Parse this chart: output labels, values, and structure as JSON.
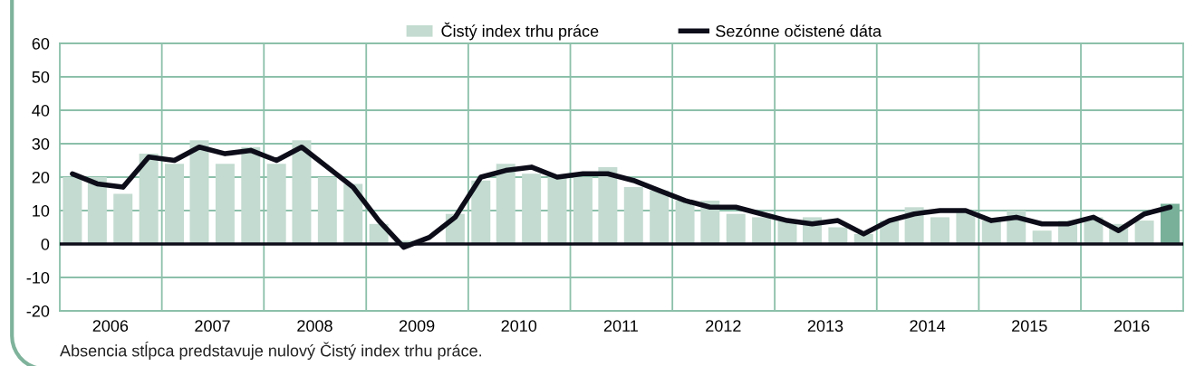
{
  "chart_data": {
    "type": "bar",
    "x": [
      "2006-02-15",
      "2006-05-15",
      "2006-08-15",
      "2006-11-15",
      "2007-02-15",
      "2007-05-15",
      "2007-08-15",
      "2007-11-15",
      "2008-02-15",
      "2008-05-15",
      "2008-08-15",
      "2008-11-15",
      "2009-02-15",
      "2009-05-15",
      "2009-08-15",
      "2009-11-15",
      "2010-02-15",
      "2010-05-15",
      "2010-08-15",
      "2010-11-15",
      "2011-02-15",
      "2011-05-15",
      "2011-08-15",
      "2011-11-15",
      "2012-02-15",
      "2012-05-15",
      "2012-08-15",
      "2012-11-15",
      "2013-02-15",
      "2013-05-15",
      "2013-08-15",
      "2013-11-15",
      "2014-02-15",
      "2014-05-15",
      "2014-08-15",
      "2014-11-15",
      "2015-02-15",
      "2015-05-15",
      "2015-08-15",
      "2015-11-15",
      "2016-02-15",
      "2016-05-15",
      "2016-08-15",
      "2016-11-15"
    ],
    "series": [
      {
        "name": "Čistý index trhu práce",
        "color": "#c3dbd0",
        "colors": [
          "#c3dbd0",
          "#c3dbd0",
          "#c3dbd0",
          "#c3dbd0",
          "#c3dbd0",
          "#c3dbd0",
          "#c3dbd0",
          "#c3dbd0",
          "#c3dbd0",
          "#c3dbd0",
          "#c3dbd0",
          "#c3dbd0",
          "#c3dbd0",
          "#c3dbd0",
          "#c3dbd0",
          "#c3dbd0",
          "#c3dbd0",
          "#c3dbd0",
          "#c3dbd0",
          "#c3dbd0",
          "#c3dbd0",
          "#c3dbd0",
          "#c3dbd0",
          "#c3dbd0",
          "#c3dbd0",
          "#c3dbd0",
          "#c3dbd0",
          "#c3dbd0",
          "#c3dbd0",
          "#c3dbd0",
          "#c3dbd0",
          "#c3dbd0",
          "#c3dbd0",
          "#c3dbd0",
          "#c3dbd0",
          "#c3dbd0",
          "#c3dbd0",
          "#c3dbd0",
          "#c3dbd0",
          "#c3dbd0",
          "#c3dbd0",
          "#c3dbd0",
          "#c3dbd0",
          "#78b09a"
        ],
        "values": [
          20,
          20,
          15,
          27,
          24,
          31,
          24,
          29,
          24,
          31,
          20,
          18,
          6,
          1,
          0,
          9,
          19,
          24,
          21,
          20,
          20,
          23,
          17,
          16,
          13,
          13,
          9,
          8,
          7,
          8,
          5,
          3,
          7,
          11,
          8,
          10,
          7,
          10,
          4,
          7,
          8,
          6,
          7,
          12
        ]
      },
      {
        "name": "Sezónne očistené dáta",
        "type": "line",
        "color": "#0d0d1a",
        "values": [
          21,
          18,
          17,
          26,
          25,
          29,
          27,
          28,
          25,
          29,
          23,
          17,
          7,
          -1,
          2,
          8,
          20,
          22,
          23,
          20,
          21,
          21,
          19,
          16,
          13,
          11,
          11,
          9,
          7,
          6,
          7,
          3,
          7,
          9,
          10,
          10,
          7,
          8,
          6,
          6,
          8,
          4,
          9,
          11
        ]
      }
    ],
    "xlim": [
      "2006-01-01",
      "2017-01-01"
    ],
    "xticks": [
      {
        "value": "2006-07-01",
        "label": "2006"
      },
      {
        "value": "2007-07-01",
        "label": "2007"
      },
      {
        "value": "2008-07-01",
        "label": "2008"
      },
      {
        "value": "2009-07-01",
        "label": "2009"
      },
      {
        "value": "2010-07-01",
        "label": "2010"
      },
      {
        "value": "2011-07-01",
        "label": "2011"
      },
      {
        "value": "2012-07-01",
        "label": "2012"
      },
      {
        "value": "2013-07-01",
        "label": "2013"
      },
      {
        "value": "2014-07-01",
        "label": "2014"
      },
      {
        "value": "2015-07-01",
        "label": "2015"
      },
      {
        "value": "2016-07-01",
        "label": "2016"
      },
      {
        "value": "2007-01-01",
        "label": null
      },
      {
        "value": "2008-01-01",
        "label": null
      },
      {
        "value": "2009-01-01",
        "label": null
      },
      {
        "value": "2010-01-01",
        "label": null
      },
      {
        "value": "2011-01-01",
        "label": null
      },
      {
        "value": "2012-01-01",
        "label": null
      },
      {
        "value": "2013-01-01",
        "label": null
      },
      {
        "value": "2014-01-01",
        "label": null
      },
      {
        "value": "2015-01-01",
        "label": null
      },
      {
        "value": "2016-01-01",
        "label": null
      }
    ],
    "ylim": [
      -20,
      60
    ],
    "yticks": [
      -20,
      -10,
      0,
      10,
      20,
      30,
      40,
      50,
      60
    ],
    "grid": true,
    "legend": "top",
    "line_style": "solid",
    "marker": "none",
    "ref_lines": [
      {
        "axis": "y",
        "value": 0,
        "color": "#0d0d1a"
      }
    ],
    "annotations": [
      "Absencia stĺpca predstavuje nulový Čistý index trhu práce."
    ]
  }
}
